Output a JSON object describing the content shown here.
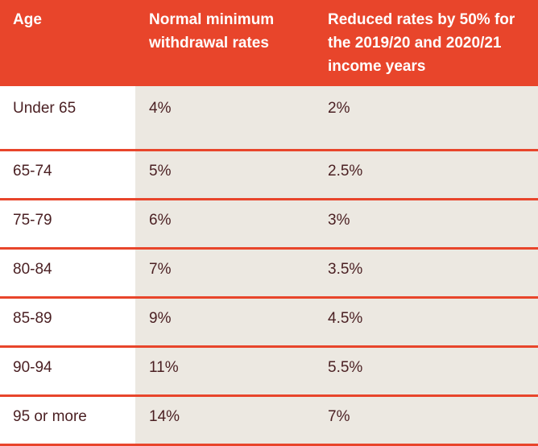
{
  "table": {
    "headers": [
      "Age",
      "Normal minimum withdrawal rates",
      "Reduced rates by 50% for the 2019/20 and 2020/21 income years"
    ],
    "rows": [
      {
        "age": "Under 65",
        "normal": "4%",
        "reduced": "2%"
      },
      {
        "age": "65-74",
        "normal": "5%",
        "reduced": "2.5%"
      },
      {
        "age": "75-79",
        "normal": "6%",
        "reduced": "3%"
      },
      {
        "age": "80-84",
        "normal": "7%",
        "reduced": "3.5%"
      },
      {
        "age": "85-89",
        "normal": "9%",
        "reduced": "4.5%"
      },
      {
        "age": "90-94",
        "normal": "11%",
        "reduced": "5.5%"
      },
      {
        "age": "95 or more",
        "normal": "14%",
        "reduced": "7%"
      }
    ]
  },
  "colors": {
    "header_bg": "#e8452b",
    "header_text": "#ffffff",
    "shaded_cell_bg": "#ece8e1",
    "body_text": "#4a1f22",
    "row_divider": "#e8452b"
  }
}
